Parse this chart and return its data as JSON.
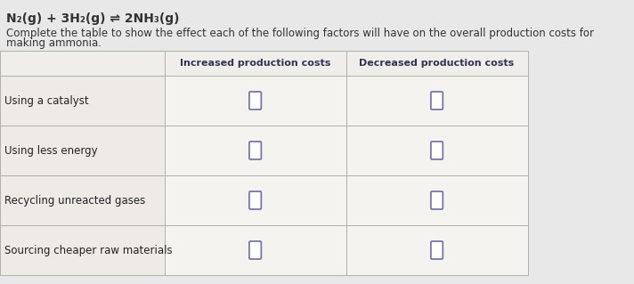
{
  "equation_parts": [
    {
      "text": "N",
      "style": "normal"
    },
    {
      "text": "2",
      "style": "sub"
    },
    {
      "text": "(g) + 3H",
      "style": "normal"
    },
    {
      "text": "2",
      "style": "sub"
    },
    {
      "text": "(g) ⇌ 2NH",
      "style": "normal"
    },
    {
      "text": "3",
      "style": "sub"
    },
    {
      "text": "(g)",
      "style": "normal"
    }
  ],
  "equation_plain": "N₂(g) + 3H₂(g) ⇌ 2NH₃(g)",
  "instruction_line1": "Complete the table to show the effect each of the following factors will have on the overall production costs for",
  "instruction_line2": "making ammonia.",
  "col_headers": [
    "Increased production costs",
    "Decreased production costs"
  ],
  "row_labels": [
    "Using a catalyst",
    "Using less energy",
    "Recycling unreacted gases",
    "Sourcing cheaper raw materials"
  ],
  "page_bg": "#e8e8e8",
  "table_bg": "#f5f3f0",
  "header_bg": "#f0eeeb",
  "cell_bg": "#f5f3f0",
  "label_bg": "#eeebe6",
  "border_color": "#b0b0b0",
  "header_text_color": "#333355",
  "label_text_color": "#222222",
  "checkbox_border": "#7777aa",
  "checkbox_bg": "#ffffff",
  "eq_color": "#333333",
  "instr_color": "#333333"
}
